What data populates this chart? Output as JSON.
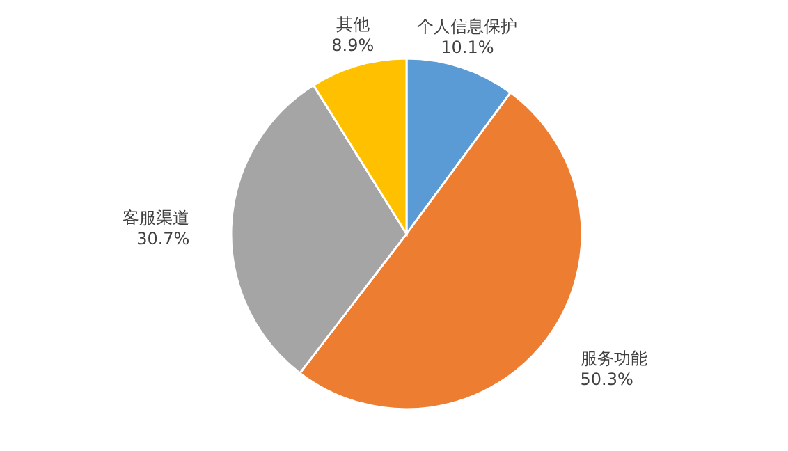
{
  "chart_data": {
    "type": "pie",
    "categories": [
      "个人信息保护",
      "服务功能",
      "客服渠道",
      "其他"
    ],
    "values": [
      10.1,
      50.3,
      30.7,
      8.9
    ],
    "colors": [
      "#5b9bd5",
      "#ed7d31",
      "#a5a5a5",
      "#ffc000"
    ],
    "value_labels": [
      "10.1%",
      "50.3%",
      "30.7%",
      "8.9%"
    ]
  }
}
